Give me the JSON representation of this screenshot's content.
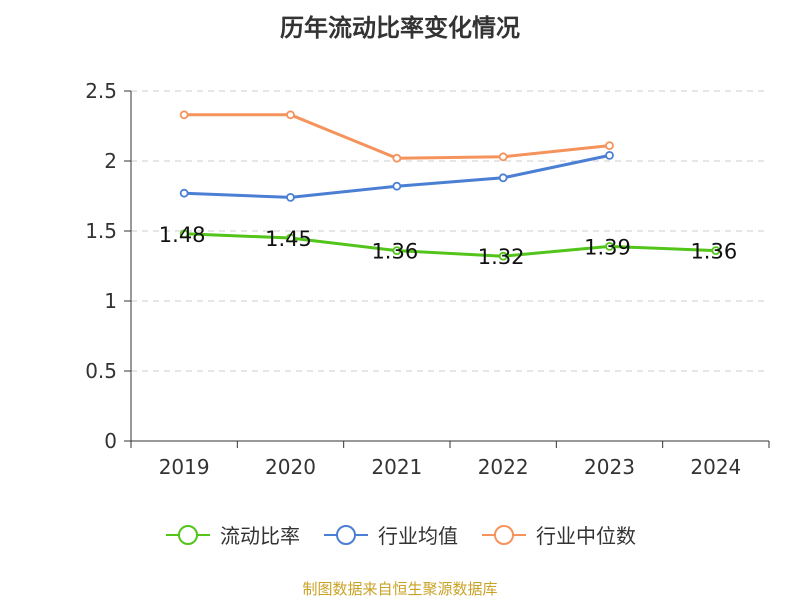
{
  "title": "历年流动比率变化情况",
  "source": "制图数据来自恒生聚源数据库",
  "chart_data": {
    "type": "line",
    "categories": [
      "2019",
      "2020",
      "2021",
      "2022",
      "2023",
      "2024"
    ],
    "ylim": [
      0,
      2.5
    ],
    "yticks": [
      0,
      0.5,
      1,
      1.5,
      2,
      2.5
    ],
    "ytick_labels": [
      "0",
      "0.5",
      "1",
      "1.5",
      "2",
      "2.5"
    ],
    "grid": true,
    "legend_position": "bottom",
    "series": [
      {
        "name": "流动比率",
        "color": "#52c41a",
        "values": [
          1.48,
          1.45,
          1.36,
          1.32,
          1.39,
          1.36
        ],
        "labels": [
          "1.48",
          "1.45",
          "1.36",
          "1.32",
          "1.39",
          "1.36"
        ]
      },
      {
        "name": "行业均值",
        "color": "#4a7fd4",
        "values": [
          1.77,
          1.74,
          1.82,
          1.88,
          2.04,
          null
        ]
      },
      {
        "name": "行业中位数",
        "color": "#f5935c",
        "values": [
          2.33,
          2.33,
          2.02,
          2.03,
          2.11,
          null
        ]
      }
    ]
  }
}
